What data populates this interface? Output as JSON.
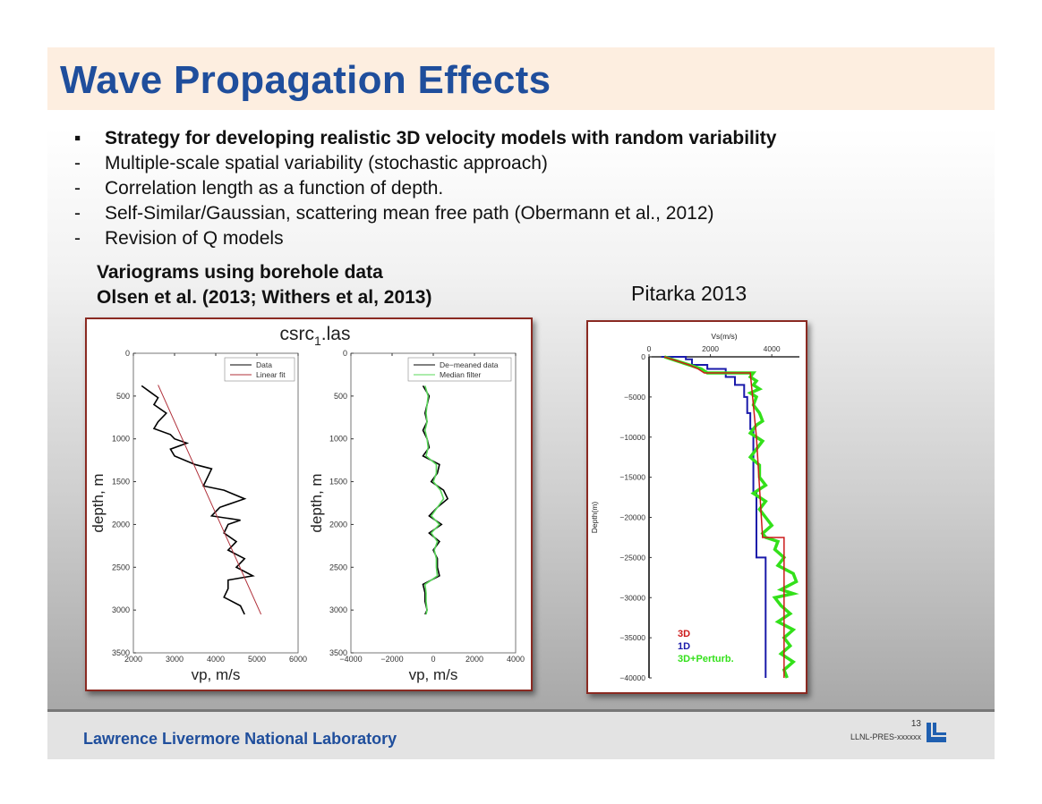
{
  "slide": {
    "title": "Wave Propagation Effects",
    "bullets": [
      {
        "marker": "▪",
        "text": "Strategy for developing realistic 3D velocity models with random variability",
        "bold": true
      },
      {
        "marker": "-",
        "text": "Multiple-scale spatial variability (stochastic approach)"
      },
      {
        "marker": "-",
        "text": "Correlation length as a function of depth."
      },
      {
        "marker": "-",
        "text": "Self-Similar/Gaussian, scattering mean free path (Obermann et al., 2012)"
      },
      {
        "marker": "-",
        "text": "Revision of  Q models"
      }
    ],
    "left_caption": [
      "Variograms using borehole data",
      "Olsen et al. (2013; Withers et al, 2013)"
    ],
    "right_caption": "Pitarka 2013",
    "footer": {
      "lab": "Lawrence Livermore National Laboratory",
      "page": "13",
      "code": "LLNL-PRES-xxxxxx",
      "logo": "LLNL"
    },
    "colors": {
      "title": "#1f4e9c",
      "header_bg": "#fdeee0",
      "frame": "#8a2a22"
    }
  },
  "chart_data": [
    {
      "type": "line",
      "title": "csrc",
      "title_subscript": "1",
      "title_suffix": ".las",
      "xlabel": "vp, m/s",
      "ylabel": "depth, m",
      "xlim": [
        2000,
        6000
      ],
      "ylim": [
        3500,
        0
      ],
      "y_reversed": true,
      "xticks": [
        "2000",
        "3000",
        "4000",
        "5000",
        "6000"
      ],
      "yticks": [
        "0",
        "500",
        "1000",
        "1500",
        "2000",
        "2500",
        "3000",
        "3500"
      ],
      "legend": "top-right",
      "series": [
        {
          "name": "Data",
          "color": "#000000",
          "depth": [
            380,
            450,
            520,
            600,
            700,
            800,
            880,
            950,
            1000,
            1050,
            1120,
            1200,
            1300,
            1350,
            1450,
            1550,
            1600,
            1700,
            1800,
            1900,
            1950,
            2000,
            2100,
            2200,
            2300,
            2400,
            2500,
            2600,
            2650,
            2750,
            2850,
            2950,
            3050
          ],
          "vp": [
            2200,
            2400,
            2600,
            2500,
            2800,
            2600,
            2500,
            2900,
            3000,
            3300,
            2900,
            3000,
            3500,
            3900,
            3800,
            3700,
            4200,
            4700,
            4100,
            3900,
            4600,
            4300,
            4200,
            4500,
            4300,
            4700,
            4500,
            4900,
            4300,
            4300,
            4200,
            4600,
            4700
          ]
        },
        {
          "name": "Linear fit",
          "color": "#b0303a",
          "depth": [
            370,
            3050
          ],
          "vp": [
            2600,
            5100
          ]
        }
      ]
    },
    {
      "type": "line",
      "xlabel": "vp, m/s",
      "ylabel": "depth, m",
      "xlim": [
        -4000,
        4000
      ],
      "ylim": [
        3500,
        0
      ],
      "y_reversed": true,
      "xticks": [
        "−4000",
        "−2000",
        "0",
        "2000",
        "4000"
      ],
      "yticks": [
        "0",
        "500",
        "1000",
        "1500",
        "2000",
        "2500",
        "3000",
        "3500"
      ],
      "legend": "top-right",
      "series": [
        {
          "name": "De−meaned data",
          "color": "#000000",
          "depth": [
            380,
            500,
            600,
            700,
            800,
            900,
            1000,
            1100,
            1200,
            1300,
            1400,
            1500,
            1600,
            1700,
            1800,
            1900,
            2000,
            2100,
            2200,
            2300,
            2400,
            2500,
            2600,
            2700,
            2800,
            2900,
            3000,
            3050
          ],
          "vp": [
            -500,
            -200,
            -300,
            -400,
            -300,
            -500,
            -300,
            -200,
            -500,
            300,
            200,
            -100,
            500,
            700,
            200,
            -200,
            400,
            -200,
            300,
            0,
            200,
            200,
            300,
            -500,
            -400,
            -400,
            -300,
            -400
          ]
        },
        {
          "name": "Median filter",
          "color": "#59d85a",
          "depth": [
            380,
            500,
            600,
            700,
            800,
            900,
            1000,
            1100,
            1200,
            1300,
            1400,
            1500,
            1600,
            1700,
            1800,
            1900,
            2000,
            2100,
            2200,
            2300,
            2400,
            2500,
            2600,
            2700,
            2800,
            2900,
            3000,
            3050
          ],
          "vp": [
            -400,
            -250,
            -300,
            -350,
            -300,
            -400,
            -300,
            -250,
            -350,
            150,
            150,
            0,
            350,
            500,
            200,
            -100,
            300,
            -100,
            200,
            50,
            150,
            150,
            200,
            -400,
            -350,
            -350,
            -300,
            -350
          ]
        }
      ]
    },
    {
      "type": "line",
      "xlabel": "Vs(m/s)",
      "ylabel": "Depth(m)",
      "xlim": [
        0,
        4900
      ],
      "ylim": [
        -40000,
        0
      ],
      "xticks": [
        "0",
        "2000",
        "4000"
      ],
      "yticks": [
        "0",
        "−5000",
        "−10000",
        "−15000",
        "−20000",
        "−25000",
        "−30000",
        "−35000",
        "−40000"
      ],
      "legend": "bottom-left",
      "series": [
        {
          "name": "3D",
          "color": "#cc1a1a",
          "depth": [
            0,
            -500,
            -1000,
            -1500,
            -2000,
            -2000,
            -10000,
            -22500,
            -22500,
            -40000
          ],
          "vs": [
            500,
            900,
            1300,
            1600,
            1800,
            3300,
            3500,
            3700,
            4400,
            4400
          ]
        },
        {
          "name": "1D",
          "color": "#1a1aaa",
          "depth": [
            0,
            0,
            -300,
            -300,
            -1000,
            -1000,
            -1500,
            -1500,
            -2500,
            -2500,
            -3500,
            -3500,
            -5000,
            -5000,
            -7000,
            -7000,
            -9000,
            -9000,
            -17000,
            -17000,
            -25000,
            -25000,
            -40000
          ],
          "vs": [
            400,
            1200,
            1200,
            1400,
            1400,
            1900,
            1900,
            2500,
            2500,
            2800,
            2800,
            3100,
            3100,
            3200,
            3200,
            3300,
            3300,
            3400,
            3400,
            3500,
            3500,
            3800,
            3800
          ]
        },
        {
          "name": "3D+Perturb.",
          "color": "#33e01a",
          "depth": [
            0,
            -500,
            -1000,
            -1500,
            -2000,
            -2000,
            -2500,
            -3000,
            -3500,
            -4000,
            -4500,
            -5000,
            -6000,
            -7000,
            -8000,
            -8500,
            -9500,
            -10500,
            -11500,
            -12500,
            -13500,
            -15000,
            -16000,
            -17000,
            -18000,
            -19000,
            -20000,
            -21000,
            -22000,
            -22500,
            -23000,
            -24000,
            -25000,
            -26000,
            -27000,
            -28000,
            -29000,
            -29500,
            -30000,
            -31000,
            -32000,
            -33000,
            -34000,
            -35000,
            -36000,
            -37000,
            -38000,
            -39000,
            -40000
          ],
          "vs": [
            500,
            900,
            1300,
            1700,
            1900,
            3400,
            3300,
            3500,
            3400,
            3600,
            3300,
            3500,
            3400,
            3600,
            3700,
            3500,
            3300,
            3700,
            3500,
            3300,
            3600,
            3600,
            3800,
            3400,
            3800,
            3600,
            3800,
            4000,
            3700,
            3800,
            4200,
            4100,
            4400,
            4200,
            4700,
            4800,
            4300,
            4700,
            4100,
            4300,
            4600,
            4200,
            4700,
            4400,
            4600,
            4300,
            4700,
            4400,
            4500
          ]
        }
      ]
    }
  ]
}
